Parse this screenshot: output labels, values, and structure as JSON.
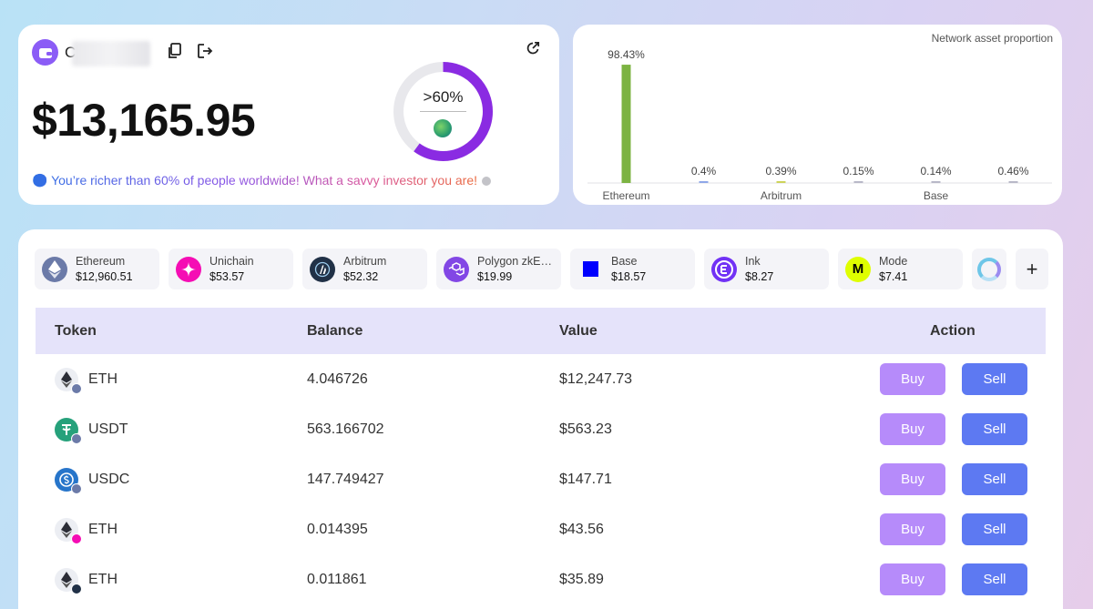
{
  "wallet": {
    "address_visible": "C",
    "total_balance": "$13,165.95",
    "percentile_label": ">60%",
    "percentile": 0.6,
    "richer_message": "🤩 You’re richer than 60% of people worldwide! What a savvy investor you are!"
  },
  "network_chart": {
    "title": "Network asset proportion"
  },
  "chart_data": {
    "type": "bar",
    "title": "Network asset proportion",
    "categories": [
      "Ethereum",
      "",
      "Arbitrum",
      "",
      "Base",
      ""
    ],
    "values": [
      98.43,
      0.4,
      0.39,
      0.15,
      0.14,
      0.46
    ],
    "value_labels": [
      "98.43%",
      "0.4%",
      "0.39%",
      "0.15%",
      "0.14%",
      "0.46%"
    ],
    "ylim": [
      0,
      100
    ],
    "bar_colors": [
      "#7cb342",
      "#8fa7e8",
      "#cdd35a",
      "#b8b8c8",
      "#b8b8c8",
      "#b8b8c8"
    ],
    "grid": false,
    "legend": "none"
  },
  "chains": [
    {
      "name": "Ethereum",
      "value": "$12,960.51",
      "icon": "ethereum-icon",
      "color": "#6b7aa8"
    },
    {
      "name": "Unichain",
      "value": "$53.57",
      "icon": "unichain-icon",
      "color": "#f50db4"
    },
    {
      "name": "Arbitrum",
      "value": "$52.32",
      "icon": "arbitrum-icon",
      "color": "#213147"
    },
    {
      "name": "Polygon zkE…",
      "value": "$19.99",
      "icon": "polygon-icon",
      "color": "#8247e5"
    },
    {
      "name": "Base",
      "value": "$18.57",
      "icon": "base-icon",
      "color": "#0000ff"
    },
    {
      "name": "Ink",
      "value": "$8.27",
      "icon": "ink-icon",
      "color": "#7132f5"
    },
    {
      "name": "Mode",
      "value": "$7.41",
      "icon": "mode-icon",
      "color": "#dffe00"
    }
  ],
  "more_chains_add": "+",
  "table": {
    "headers": {
      "token": "Token",
      "balance": "Balance",
      "value": "Value",
      "action": "Action"
    },
    "buy_label": "Buy",
    "sell_label": "Sell",
    "rows": [
      {
        "symbol": "ETH",
        "balance": "4.046726",
        "value": "$12,247.73",
        "icon": "eth-token-icon",
        "badge": "ethereum-badge"
      },
      {
        "symbol": "USDT",
        "balance": "563.166702",
        "value": "$563.23",
        "icon": "usdt-token-icon",
        "badge": "ethereum-badge"
      },
      {
        "symbol": "USDC",
        "balance": "147.749427",
        "value": "$147.71",
        "icon": "usdc-token-icon",
        "badge": "ethereum-badge"
      },
      {
        "symbol": "ETH",
        "balance": "0.014395",
        "value": "$43.56",
        "icon": "eth-token-icon",
        "badge": "unichain-badge"
      },
      {
        "symbol": "ETH",
        "balance": "0.011861",
        "value": "$35.89",
        "icon": "eth-token-icon",
        "badge": "arbitrum-badge"
      }
    ]
  }
}
